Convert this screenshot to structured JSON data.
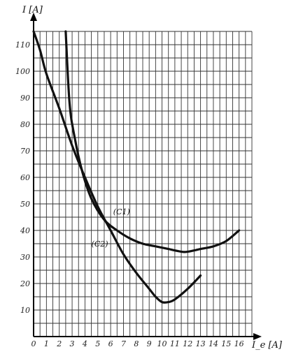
{
  "chart_data": {
    "type": "line",
    "xlabel": "I_e [A]",
    "ylabel": "I [A]",
    "xlim": [
      0,
      17
    ],
    "ylim": [
      0,
      115
    ],
    "grid": true,
    "x_ticks": [
      "0",
      "1",
      "2",
      "3",
      "4",
      "5",
      "6",
      "7",
      "8",
      "9",
      "10",
      "11",
      "12",
      "13",
      "14",
      "15",
      "16"
    ],
    "y_ticks": [
      "10",
      "20",
      "30",
      "40",
      "50",
      "60",
      "70",
      "80",
      "90",
      "100",
      "110"
    ],
    "series": [
      {
        "name": "(C1)",
        "color": "#111111",
        "x": [
          2.5,
          2.8,
          3.2,
          3.8,
          4.5,
          5.5,
          6.5,
          7.5,
          8.5,
          9.5,
          10.5,
          11.5,
          12.0,
          13.0,
          14.0,
          15.0,
          16.0
        ],
        "y": [
          115,
          88,
          75,
          62,
          52,
          44,
          40,
          37,
          35,
          34,
          33,
          32,
          32,
          33,
          34,
          36,
          40
        ]
      },
      {
        "name": "(C2)",
        "color": "#111111",
        "x": [
          0,
          0.5,
          1,
          2,
          3,
          4,
          5,
          6,
          7,
          8,
          9,
          9.5,
          10,
          10.5,
          11,
          12,
          13
        ],
        "y": [
          115,
          108,
          99,
          86,
          72,
          60,
          49,
          40,
          31,
          24,
          18,
          15,
          13,
          13,
          14,
          18,
          23
        ]
      }
    ],
    "curve_labels": [
      {
        "text": "(C1)",
        "x": 6.2,
        "y": 46
      },
      {
        "text": "(C2)",
        "x": 4.5,
        "y": 34
      }
    ]
  }
}
